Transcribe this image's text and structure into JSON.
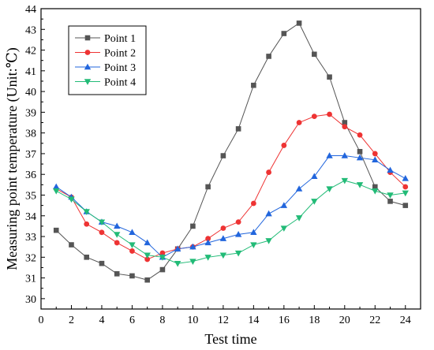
{
  "chart_data": {
    "type": "line",
    "xlabel": "Test time",
    "ylabel": "Measuring point temperature (Unit:℃)",
    "xlim": [
      0,
      25
    ],
    "ylim": [
      29.5,
      44
    ],
    "xticks": [
      0,
      2,
      4,
      6,
      8,
      10,
      12,
      14,
      16,
      18,
      20,
      22,
      24
    ],
    "yticks": [
      30,
      31,
      32,
      33,
      34,
      35,
      36,
      37,
      38,
      39,
      40,
      41,
      42,
      43,
      44
    ],
    "grid": false,
    "legend_position": "top-left",
    "x": [
      1,
      2,
      3,
      4,
      5,
      6,
      7,
      8,
      9,
      10,
      11,
      12,
      13,
      14,
      15,
      16,
      17,
      18,
      19,
      20,
      21,
      22,
      23,
      24
    ],
    "series": [
      {
        "name": "Point 1",
        "color": "#555555",
        "marker": "square",
        "values": [
          33.3,
          32.6,
          32.0,
          31.7,
          31.2,
          31.1,
          30.9,
          31.4,
          32.4,
          33.5,
          35.4,
          36.9,
          38.2,
          40.3,
          41.7,
          42.8,
          43.3,
          41.8,
          40.7,
          38.5,
          37.1,
          35.4,
          34.7,
          34.5
        ]
      },
      {
        "name": "Point 2",
        "color": "#ee3333",
        "marker": "circle",
        "values": [
          35.3,
          34.9,
          33.6,
          33.2,
          32.7,
          32.3,
          31.9,
          32.2,
          32.4,
          32.5,
          32.9,
          33.4,
          33.7,
          34.6,
          36.1,
          37.4,
          38.5,
          38.8,
          38.9,
          38.3,
          37.9,
          37.0,
          36.1,
          35.4
        ]
      },
      {
        "name": "Point 3",
        "color": "#2266dd",
        "marker": "triangle-up",
        "values": [
          35.4,
          34.9,
          34.2,
          33.7,
          33.5,
          33.2,
          32.7,
          32.0,
          32.4,
          32.5,
          32.7,
          32.9,
          33.1,
          33.2,
          34.1,
          34.5,
          35.3,
          35.9,
          36.9,
          36.9,
          36.8,
          36.7,
          36.2,
          35.8
        ]
      },
      {
        "name": "Point 4",
        "color": "#22bb77",
        "marker": "triangle-down",
        "values": [
          35.2,
          34.8,
          34.2,
          33.7,
          33.1,
          32.6,
          32.1,
          32.0,
          31.7,
          31.8,
          32.0,
          32.1,
          32.2,
          32.6,
          32.8,
          33.4,
          33.9,
          34.7,
          35.3,
          35.7,
          35.5,
          35.2,
          35.0,
          35.1
        ]
      }
    ]
  }
}
